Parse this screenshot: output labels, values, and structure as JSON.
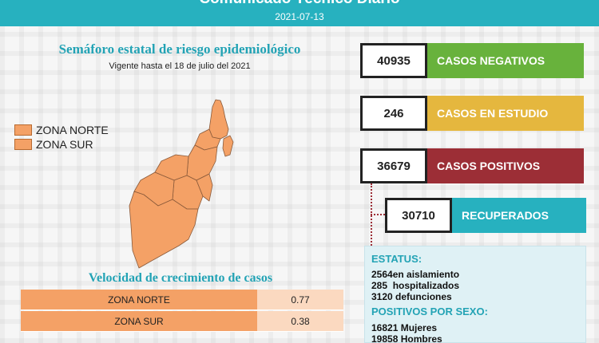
{
  "header": {
    "title": "Comunicado Técnico Diario",
    "date": "2021-07-13"
  },
  "semaforo": {
    "title": "Semáforo estatal de riesgo epidemiológico",
    "subtitle": "Vigente hasta el 18 de julio del 2021",
    "legend": [
      {
        "label": "ZONA NORTE",
        "color": "#f4a166"
      },
      {
        "label": "ZONA SUR",
        "color": "#f4a166"
      }
    ]
  },
  "velocidad": {
    "title": "Velocidad de crecimiento de casos",
    "rows": [
      {
        "zone": "ZONA NORTE",
        "value": "0.77"
      },
      {
        "zone": "ZONA SUR",
        "value": "0.38"
      }
    ]
  },
  "stats": {
    "negativos": {
      "value": "40935",
      "label": "CASOS NEGATIVOS",
      "color": "#68b23c"
    },
    "estudio": {
      "value": "246",
      "label": "CASOS EN ESTUDIO",
      "color": "#e5b73e"
    },
    "positivos": {
      "value": "36679",
      "label": "CASOS POSITIVOS",
      "color": "#9c2e36"
    },
    "recuperados": {
      "value": "30710",
      "label": "RECUPERADOS",
      "color": "#27b1bf"
    }
  },
  "estatus": {
    "heading": "ESTATUS:",
    "aislamiento": "2564en aislamiento",
    "hospitalizados": "285  hospitalizados",
    "defunciones": "3120 defunciones",
    "sexo_heading": "POSITIVOS POR SEXO:",
    "mujeres": "16821 Mujeres",
    "hombres": "19858 Hombres"
  }
}
